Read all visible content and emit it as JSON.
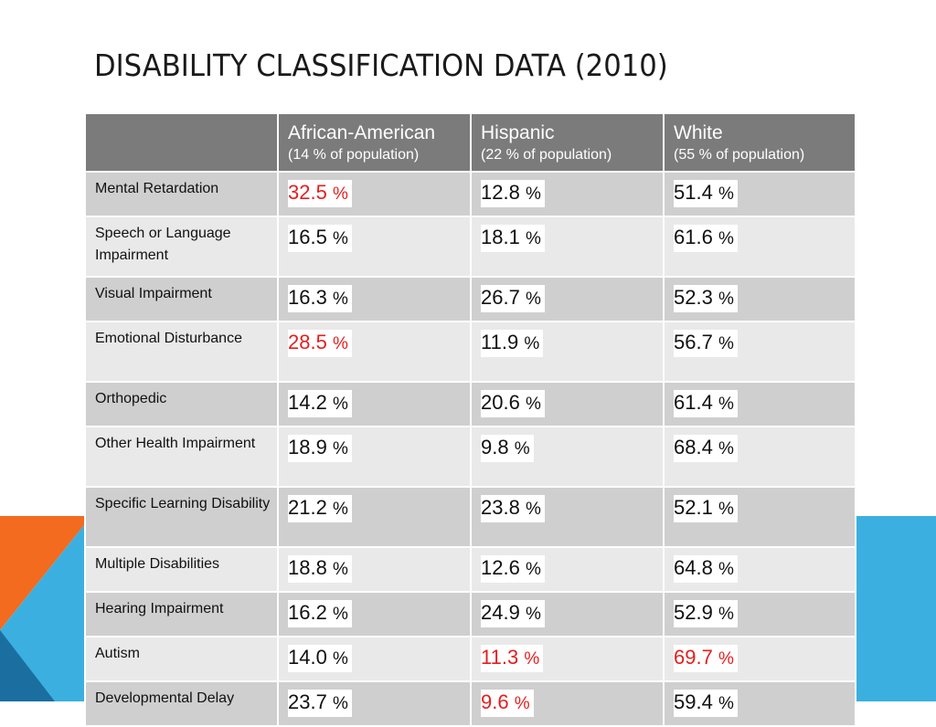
{
  "slide": {
    "title": "DISABILITY CLASSIFICATION DATA (2010)",
    "colors": {
      "header_bg": "#7b7b7b",
      "row_dark": "#cfcfcf",
      "row_light": "#e9e9e9",
      "highlight_text": "#e51e1e",
      "accent_orange": "#f26b1f",
      "accent_blue": "#3bb0e0",
      "accent_navy": "#1b6fa0"
    }
  },
  "table": {
    "columns": [
      {
        "name": "",
        "subtitle": ""
      },
      {
        "name": "African-American",
        "subtitle": "(14 % of population)"
      },
      {
        "name": "Hispanic",
        "subtitle": "(22  % of population)"
      },
      {
        "name": "White",
        "subtitle": "(55 % of population)"
      }
    ],
    "unit": "%",
    "rows": [
      {
        "label": "Mental Retardation",
        "values": [
          "32.5",
          "12.8",
          "51.4"
        ],
        "highlight": [
          true,
          false,
          false
        ]
      },
      {
        "label": "Speech or Language Impairment",
        "values": [
          "16.5",
          "18.1",
          "61.6"
        ],
        "highlight": [
          false,
          false,
          false
        ]
      },
      {
        "label": "Visual Impairment",
        "values": [
          "16.3",
          "26.7",
          "52.3"
        ],
        "highlight": [
          false,
          false,
          false
        ]
      },
      {
        "label": "Emotional Disturbance",
        "values": [
          "28.5",
          "11.9",
          "56.7"
        ],
        "highlight": [
          true,
          false,
          false
        ]
      },
      {
        "label": "Orthopedic",
        "values": [
          "14.2",
          "20.6",
          "61.4"
        ],
        "highlight": [
          false,
          false,
          false
        ]
      },
      {
        "label": "Other Health Impairment",
        "values": [
          "18.9",
          "9.8",
          "68.4"
        ],
        "highlight": [
          false,
          false,
          false
        ]
      },
      {
        "label": "Specific Learning Disability",
        "values": [
          "21.2",
          "23.8",
          "52.1"
        ],
        "highlight": [
          false,
          false,
          false
        ]
      },
      {
        "label": "Multiple Disabilities",
        "values": [
          "18.8",
          "12.6",
          "64.8"
        ],
        "highlight": [
          false,
          false,
          false
        ]
      },
      {
        "label": "Hearing Impairment",
        "values": [
          "16.2",
          "24.9",
          "52.9"
        ],
        "highlight": [
          false,
          false,
          false
        ]
      },
      {
        "label": "Autism",
        "values": [
          "14.0",
          "11.3",
          "69.7"
        ],
        "highlight": [
          false,
          true,
          true
        ]
      },
      {
        "label": "Developmental Delay",
        "values": [
          "23.7",
          "9.6",
          "59.4"
        ],
        "highlight": [
          false,
          true,
          false
        ]
      }
    ]
  }
}
